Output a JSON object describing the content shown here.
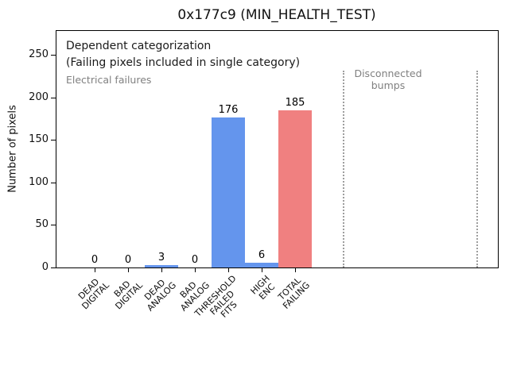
{
  "chart_data": {
    "type": "bar",
    "title": "0x177c9 (MIN_HEALTH_TEST)",
    "ylabel": "Number of pixels",
    "xlabel": "",
    "categories": [
      "DEAD\nDIGITAL",
      "BAD\nDIGITAL",
      "DEAD\nANALOG",
      "BAD\nANALOG",
      "THRESHOLD\nFAILED\nFITS",
      "HIGH\nENC",
      "TOTAL\nFAILING"
    ],
    "values": [
      0,
      0,
      3,
      0,
      176,
      6,
      185
    ],
    "value_labels": [
      "0",
      "0",
      "3",
      "0",
      "176",
      "6",
      "185"
    ],
    "bar_colors": [
      "#6495ed",
      "#6495ed",
      "#6495ed",
      "#6495ed",
      "#6495ed",
      "#6495ed",
      "#f08080"
    ],
    "ylim": [
      0,
      278
    ],
    "yticks": [
      0,
      50,
      100,
      150,
      200,
      250
    ],
    "grid": false,
    "legend": null,
    "annotations": [
      {
        "id": "dependent-note",
        "text": "Dependent categorization\n(Failing pixels included in single category)",
        "color": "#1a1a1a"
      },
      {
        "id": "electrical-failures-label",
        "text": "Electrical failures",
        "color": "#808080"
      },
      {
        "id": "disconnected-bumps-label",
        "text": "Disconnected\nbumps",
        "color": "#808080"
      }
    ],
    "colors": {
      "bar_blue": "#6495ed",
      "bar_red": "#f08080",
      "divider_gray": "#9e9e9e"
    }
  }
}
